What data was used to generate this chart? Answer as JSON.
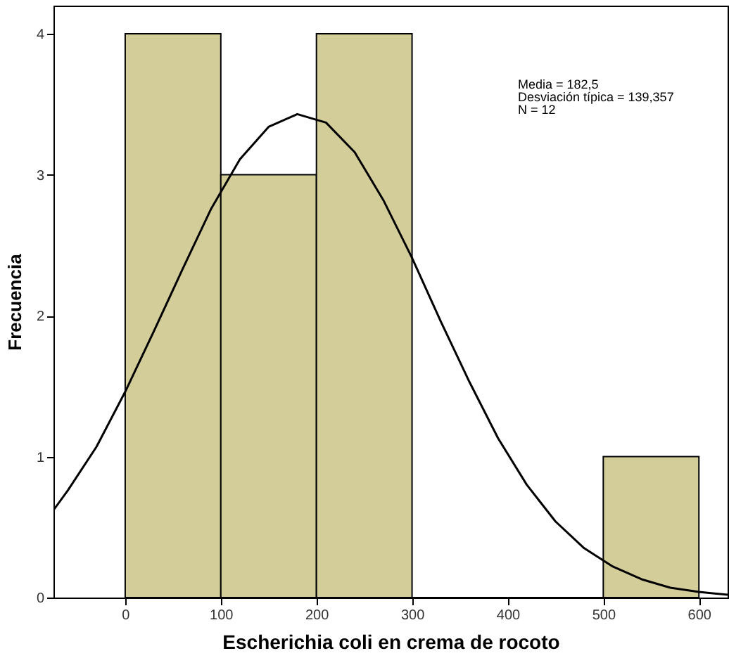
{
  "chart_data": {
    "type": "histogram",
    "xlabel": "Escherichia coli en crema de rocoto",
    "ylabel": "Frecuencia",
    "bins": [
      0,
      100,
      200,
      300,
      400,
      500,
      600
    ],
    "values": [
      4,
      3,
      4,
      0,
      0,
      1
    ],
    "color": "#d3ce99",
    "series": [
      {
        "type": "line",
        "color": "#000000",
        "x": [
          -75,
          -60,
          -30,
          0,
          30,
          60,
          90,
          120,
          150,
          180,
          210,
          240,
          270,
          300,
          330,
          360,
          390,
          420,
          450,
          480,
          510,
          540,
          570,
          600,
          630
        ],
        "values": [
          0.62,
          0.76,
          1.07,
          1.46,
          1.89,
          2.33,
          2.76,
          3.11,
          3.34,
          3.43,
          3.37,
          3.16,
          2.82,
          2.41,
          1.96,
          1.53,
          1.13,
          0.8,
          0.54,
          0.35,
          0.22,
          0.13,
          0.07,
          0.04,
          0.02
        ]
      }
    ],
    "xlim": [
      -75,
      630
    ],
    "xticks": [
      0,
      100,
      200,
      300,
      400,
      500,
      600
    ],
    "ylim": [
      0,
      4.2
    ],
    "yticks": [
      0,
      1,
      2,
      3,
      4
    ],
    "grid": false,
    "marker": "none",
    "line_style": "solid",
    "annotations": [
      "Media = 182,5",
      "Desviación típica = 139,357",
      "N = 12"
    ]
  }
}
